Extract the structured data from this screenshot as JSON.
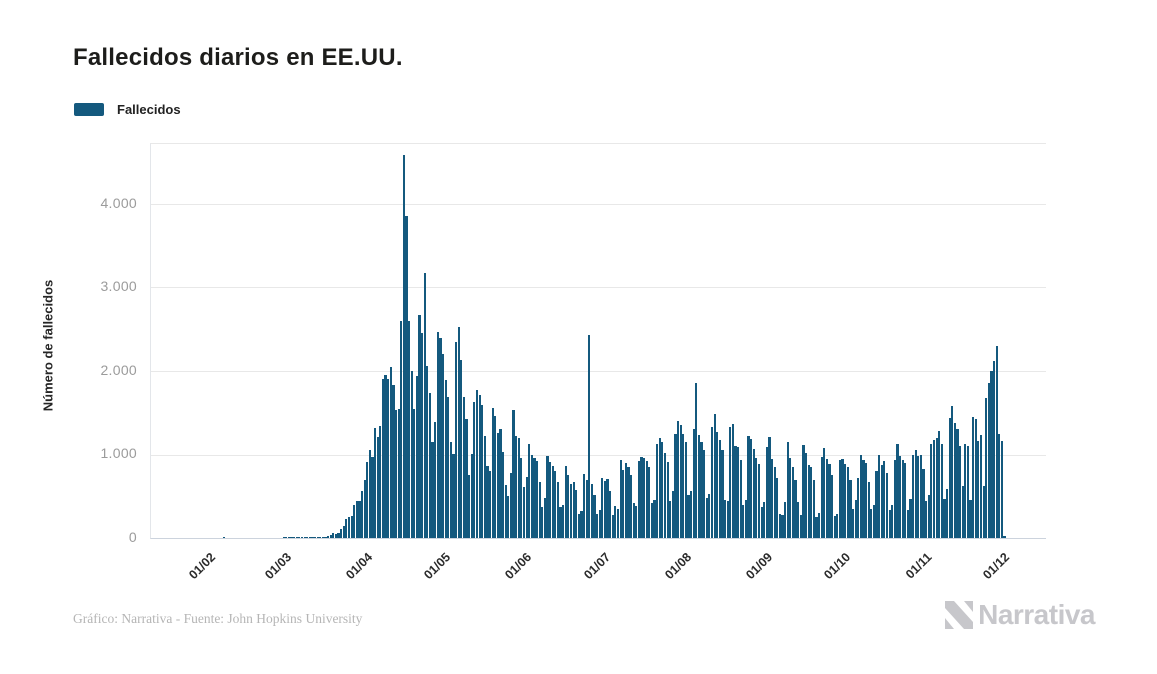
{
  "header": {
    "title": "Fallecidos diarios en EE.UU."
  },
  "footer": {
    "credit": "Gráfico: Narrativa - Fuente: John Hopkins University",
    "brand": "Narrativa"
  },
  "chart_data": {
    "type": "bar",
    "title": "Fallecidos diarios en EE.UU.",
    "ylabel": "Número de fallecidos",
    "yticks": [
      {
        "label": "0",
        "value": 0
      },
      {
        "label": "1.000",
        "value": 1000
      },
      {
        "label": "2.000",
        "value": 2000
      },
      {
        "label": "3.000",
        "value": 3000
      },
      {
        "label": "4.000",
        "value": 4000
      }
    ],
    "ylim": [
      0,
      4718
    ],
    "grid": "horizontal",
    "legend_position": "top-left",
    "x_start_date": "22/01/2020",
    "x_end_date": "01/12/2020",
    "x_ticks": [
      "01/02",
      "01/03",
      "01/04",
      "01/05",
      "01/06",
      "01/07",
      "01/08",
      "01/09",
      "01/10",
      "01/11",
      "01/12"
    ],
    "x_tick_indices": [
      10,
      39,
      70,
      100,
      131,
      161,
      192,
      223,
      253,
      284,
      314
    ],
    "colors": {
      "bar": "#14597e",
      "grid": "#e8e8e8",
      "title": "#1d1d1b",
      "tick_gray": "#9b9b9b"
    },
    "series": [
      {
        "name": "Fallecidos",
        "values": [
          0,
          0,
          0,
          0,
          0,
          0,
          0,
          0,
          0,
          0,
          0,
          0,
          0,
          0,
          0,
          1,
          0,
          0,
          0,
          0,
          0,
          0,
          0,
          0,
          0,
          0,
          0,
          0,
          0,
          0,
          0,
          0,
          0,
          0,
          0,
          0,
          0,
          0,
          1,
          1,
          4,
          1,
          3,
          1,
          3,
          3,
          4,
          4,
          5,
          7,
          4,
          8,
          11,
          10,
          18,
          23,
          41,
          57,
          50,
          66,
          110,
          141,
          225,
          247,
          268,
          401,
          445,
          444,
          558,
          700,
          911,
          1050,
          968,
          1320,
          1212,
          1344,
          1906,
          1952,
          1900,
          2050,
          1830,
          1535,
          1541,
          2600,
          4591,
          3857,
          2600,
          2000,
          1550,
          1940,
          2670,
          2460,
          3176,
          2065,
          1737,
          1150,
          1384,
          2470,
          2390,
          2200,
          1890,
          1690,
          1150,
          1010,
          2350,
          2530,
          2130,
          1687,
          1422,
          750,
          1010,
          1630,
          1772,
          1715,
          1595,
          1218,
          865,
          808,
          1552,
          1461,
          1263,
          1306,
          1035,
          638,
          505,
          774,
          1535,
          1223,
          1193,
          960,
          605,
          730,
          1130,
          995,
          960,
          921,
          670,
          373,
          474,
          980,
          905,
          868,
          800,
          672,
          373,
          390,
          858,
          760,
          651,
          673,
          580,
          285,
          320,
          766,
          700,
          2437,
          650,
          511,
          287,
          335,
          723,
          680,
          710,
          560,
          270,
          380,
          350,
          930,
          820,
          900,
          850,
          750,
          420,
          380,
          920,
          970,
          963,
          925,
          850,
          420,
          450,
          1120,
          1195,
          1150,
          1019,
          910,
          440,
          560,
          1244,
          1400,
          1350,
          1250,
          1150,
          515,
          560,
          1302,
          1862,
          1230,
          1150,
          1050,
          480,
          530,
          1325,
          1490,
          1268,
          1178,
          1050,
          450,
          440,
          1325,
          1360,
          1100,
          1090,
          940,
          390,
          450,
          1222,
          1180,
          1070,
          960,
          890,
          370,
          430,
          1090,
          1208,
          950,
          850,
          720,
          290,
          270,
          430,
          1150,
          960,
          850,
          700,
          430,
          280,
          1110,
          1020,
          880,
          850,
          700,
          250,
          300,
          970,
          1080,
          950,
          890,
          760,
          260,
          290,
          940,
          950,
          890,
          850,
          700,
          350,
          450,
          720,
          990,
          930,
          900,
          670,
          350,
          390,
          800,
          990,
          880,
          920,
          780,
          340,
          400,
          930,
          1130,
          980,
          940,
          900,
          340,
          470,
          990,
          1050,
          980,
          1000,
          830,
          440,
          510,
          1130,
          1170,
          1200,
          1280,
          1130,
          470,
          590,
          1440,
          1580,
          1380,
          1310,
          1100,
          620,
          1120,
          1100,
          460,
          1450,
          1430,
          1160,
          1230,
          620,
          1680,
          1860,
          2000,
          2120,
          2300,
          1245,
          1160,
          30
        ]
      }
    ]
  }
}
